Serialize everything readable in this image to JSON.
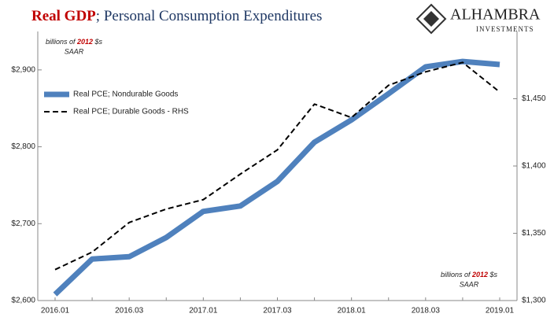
{
  "chart_data": {
    "type": "line",
    "title": {
      "highlight": "Real GDP",
      "rest": "; Personal Consumption Expenditures"
    },
    "logo": {
      "name": "ALHAMBRA",
      "sub": "INVESTMENTS"
    },
    "annotations": [
      {
        "parts": [
          "billions of ",
          "2012",
          " $s"
        ],
        "sub": "SAAR",
        "corner": "upper left"
      },
      {
        "parts": [
          "billions of ",
          "2012",
          " $s"
        ],
        "sub": "SAAR",
        "corner": "lower right"
      }
    ],
    "categories": [
      "2016.01",
      null,
      "2016.03",
      null,
      "2017.01",
      null,
      "2017.03",
      null,
      "2018.01",
      null,
      "2018.03",
      null,
      "2019.01"
    ],
    "series": [
      {
        "name": "Real PCE; Nondurable Goods",
        "color": "#4f81bd",
        "width": 7,
        "dash": false,
        "values": [
          2608,
          2654,
          2657,
          2682,
          2716,
          2723,
          2755,
          2806,
          2835,
          2869,
          2904,
          2911,
          2907
        ]
      },
      {
        "name": "Real PCE; Durable Goods - RHS",
        "color": "#000000",
        "width": 2,
        "dash": true,
        "axis": "y2",
        "values": [
          1323,
          1336,
          1358,
          1368,
          1375,
          1394,
          1412,
          1446,
          1436,
          1460,
          1470,
          1477,
          1455
        ]
      }
    ],
    "ylim": [
      2600,
      2950
    ],
    "yticks": [
      {
        "value": 2600,
        "label": "$2,600"
      },
      {
        "value": 2700,
        "label": "$2,700"
      },
      {
        "value": 2800,
        "label": "$2,800"
      },
      {
        "value": 2900,
        "label": "$2,900"
      }
    ],
    "y2lim": [
      1300,
      1500
    ],
    "y2ticks": [
      {
        "value": 1300,
        "label": "$1,300"
      },
      {
        "value": 1350,
        "label": "$1,350"
      },
      {
        "value": 1400,
        "label": "$1,400"
      },
      {
        "value": 1450,
        "label": "$1,450"
      }
    ],
    "legend": "upper left"
  }
}
